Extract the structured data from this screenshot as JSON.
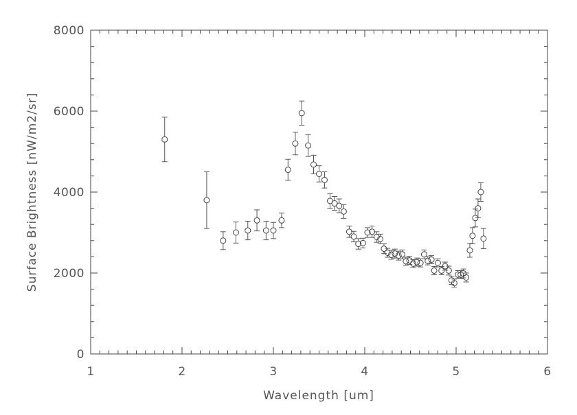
{
  "chart_data": {
    "type": "scatter",
    "title": "",
    "xlabel": "Wavelength [um]",
    "ylabel": "Surface Brightness [nW/m2/sr]",
    "xlim": [
      1,
      6
    ],
    "ylim": [
      0,
      8000
    ],
    "xticks": [
      1,
      2,
      3,
      4,
      5,
      6
    ],
    "xtick_labels": [
      "1",
      "2",
      "3",
      "4",
      "5",
      "6"
    ],
    "yticks": [
      0,
      2000,
      4000,
      6000,
      8000
    ],
    "ytick_labels": [
      "0",
      "2000",
      "4000",
      "6000",
      "8000"
    ],
    "x_minor_step": 0.1,
    "y_minor_step": 400,
    "grid": false,
    "marker": "open-circle",
    "error_bars": true,
    "series": [
      {
        "x": [
          1.81,
          2.27,
          2.45,
          2.59,
          2.72,
          2.82,
          2.92,
          3.0,
          3.09,
          3.16,
          3.24,
          3.31,
          3.38,
          3.44,
          3.5,
          3.56,
          3.62,
          3.67,
          3.72,
          3.77,
          3.83,
          3.88,
          3.93,
          3.98,
          4.03,
          4.08,
          4.13,
          4.17,
          4.21,
          4.25,
          4.29,
          4.33,
          4.37,
          4.41,
          4.45,
          4.49,
          4.53,
          4.57,
          4.61,
          4.65,
          4.69,
          4.73,
          4.76,
          4.8,
          4.84,
          4.88,
          4.92,
          4.95,
          4.98,
          5.02,
          5.05,
          5.08,
          5.11,
          5.15,
          5.18,
          5.21,
          5.24,
          5.27,
          5.3
        ],
        "y": [
          5300,
          3800,
          2800,
          3000,
          3050,
          3300,
          3050,
          3050,
          3300,
          4550,
          5200,
          5950,
          5150,
          4680,
          4450,
          4300,
          3780,
          3720,
          3660,
          3520,
          3020,
          2900,
          2720,
          2740,
          3000,
          3020,
          2890,
          2840,
          2600,
          2500,
          2450,
          2480,
          2430,
          2460,
          2290,
          2310,
          2230,
          2270,
          2250,
          2460,
          2300,
          2330,
          2060,
          2250,
          2060,
          2170,
          2060,
          1820,
          1750,
          1960,
          1960,
          1990,
          1890,
          2560,
          2920,
          3360,
          3600,
          4000,
          2850
        ],
        "err": [
          550,
          700,
          220,
          260,
          230,
          260,
          230,
          200,
          180,
          260,
          280,
          300,
          270,
          230,
          200,
          200,
          180,
          170,
          170,
          170,
          140,
          130,
          130,
          120,
          120,
          140,
          130,
          120,
          120,
          110,
          110,
          110,
          110,
          110,
          100,
          100,
          100,
          100,
          100,
          110,
          100,
          100,
          100,
          100,
          100,
          100,
          110,
          100,
          100,
          100,
          100,
          110,
          110,
          170,
          200,
          220,
          230,
          230,
          250
        ]
      }
    ]
  }
}
